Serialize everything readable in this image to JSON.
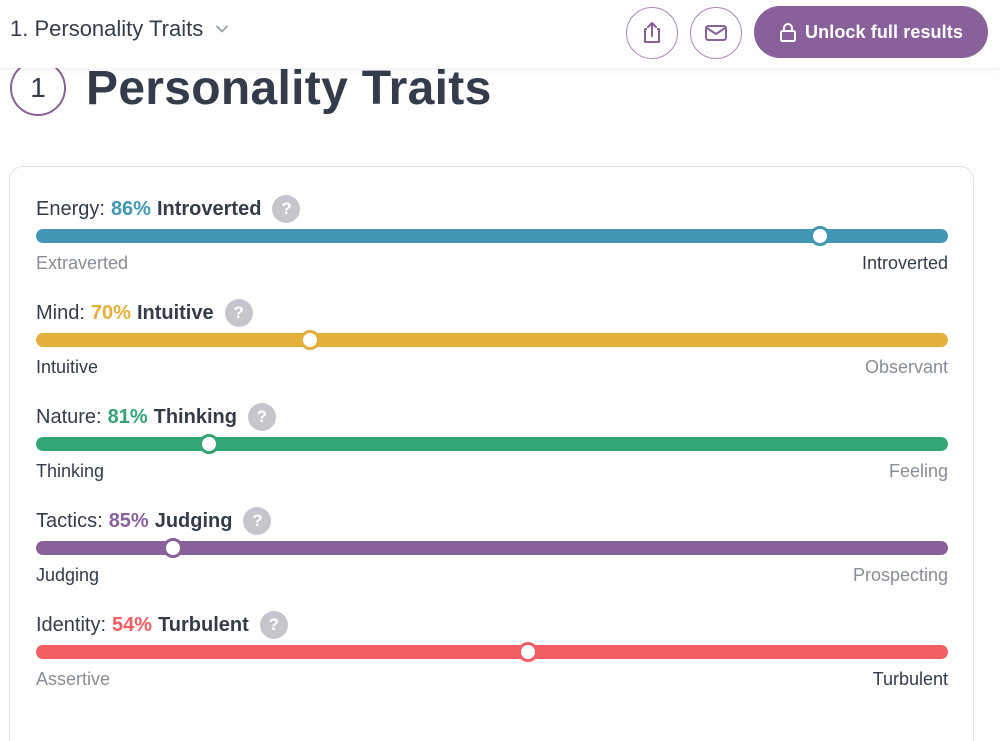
{
  "header": {
    "section_label": "1. Personality Traits",
    "unlock_label": "Unlock full results"
  },
  "page": {
    "step_number": "1",
    "title": "Personality Traits"
  },
  "colors": {
    "accent": "#88619a",
    "energy": "#4298b4",
    "mind": "#e4ae3a",
    "nature": "#33a474",
    "tactics": "#88619a",
    "identity": "#f25e62"
  },
  "traits": [
    {
      "dimension": "Energy:",
      "percent": "86%",
      "result": "Introverted",
      "left_label": "Extraverted",
      "right_label": "Introverted",
      "position": 0.86,
      "active_side": "right",
      "color": "#4298b4"
    },
    {
      "dimension": "Mind:",
      "percent": "70%",
      "result": "Intuitive",
      "left_label": "Intuitive",
      "right_label": "Observant",
      "position": 0.3,
      "active_side": "left",
      "color": "#e4ae3a"
    },
    {
      "dimension": "Nature:",
      "percent": "81%",
      "result": "Thinking",
      "left_label": "Thinking",
      "right_label": "Feeling",
      "position": 0.19,
      "active_side": "left",
      "color": "#33a474"
    },
    {
      "dimension": "Tactics:",
      "percent": "85%",
      "result": "Judging",
      "left_label": "Judging",
      "right_label": "Prospecting",
      "position": 0.15,
      "active_side": "left",
      "color": "#88619a"
    },
    {
      "dimension": "Identity:",
      "percent": "54%",
      "result": "Turbulent",
      "left_label": "Assertive",
      "right_label": "Turbulent",
      "position": 0.54,
      "active_side": "right",
      "color": "#f25e62"
    }
  ]
}
